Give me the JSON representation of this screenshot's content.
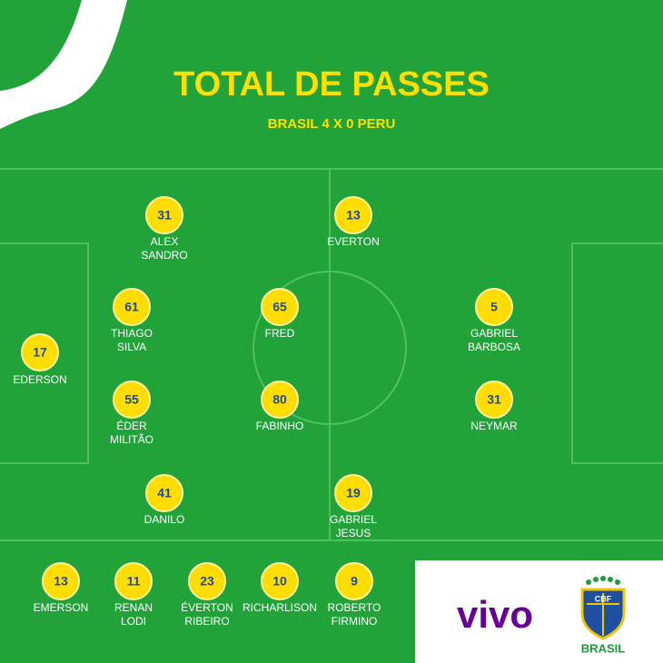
{
  "title": "TOTAL DE PASSES",
  "subtitle": "BRASIL 4 X 0 PERU",
  "starters": [
    {
      "passes": 17,
      "name": [
        "EDERSON"
      ]
    },
    {
      "passes": 31,
      "name": [
        "ALEX",
        "SANDRO"
      ]
    },
    {
      "passes": 13,
      "name": [
        "EVERTON"
      ]
    },
    {
      "passes": 61,
      "name": [
        "THIAGO",
        "SILVA"
      ]
    },
    {
      "passes": 65,
      "name": [
        "FRED"
      ]
    },
    {
      "passes": 5,
      "name": [
        "GABRIEL",
        "BARBOSA"
      ]
    },
    {
      "passes": 55,
      "name": [
        "ÉDER",
        "MILITÃO"
      ]
    },
    {
      "passes": 80,
      "name": [
        "FABINHO"
      ]
    },
    {
      "passes": 31,
      "name": [
        "NEYMAR"
      ]
    },
    {
      "passes": 41,
      "name": [
        "DANILO"
      ]
    },
    {
      "passes": 19,
      "name": [
        "GABRIEL",
        "JESUS"
      ]
    }
  ],
  "substitutes": [
    {
      "passes": 13,
      "name": [
        "EMERSON"
      ]
    },
    {
      "passes": 11,
      "name": [
        "RENAN",
        "LODI"
      ]
    },
    {
      "passes": 23,
      "name": [
        "ÉVERTON",
        "RIBEIRO"
      ]
    },
    {
      "passes": 10,
      "name": [
        "RICHARLISON"
      ]
    },
    {
      "passes": 9,
      "name": [
        "ROBERTO",
        "FIRMINO"
      ]
    }
  ],
  "sponsor": "vivo",
  "crest": {
    "abbr": "CBF",
    "label": "BRASIL"
  }
}
